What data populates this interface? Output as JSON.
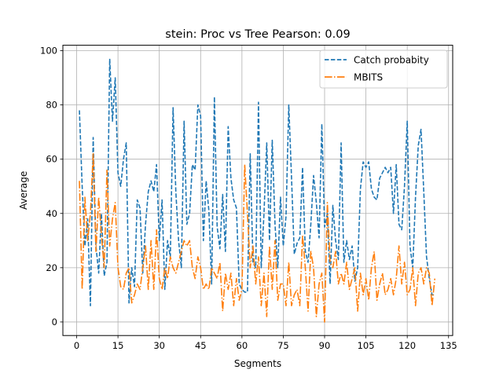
{
  "chart_data": {
    "type": "line",
    "title": "stein: Proc vs Tree Pearson: 0.09",
    "xlabel": "Segments",
    "ylabel": "Average",
    "xlim": [
      -5,
      136.5
    ],
    "ylim": [
      -5,
      102
    ],
    "xticks": [
      0,
      15,
      30,
      45,
      60,
      75,
      90,
      105,
      120,
      135
    ],
    "yticks": [
      0,
      20,
      40,
      60,
      80,
      100
    ],
    "grid": true,
    "legend": "top-right",
    "series": [
      {
        "name": "Catch probabity",
        "color": "#1f77b4",
        "style": "dashed",
        "x": [
          1,
          2,
          3,
          4,
          5,
          6,
          7,
          8,
          9,
          10,
          11,
          12,
          13,
          14,
          15,
          16,
          17,
          18,
          19,
          20,
          21,
          22,
          23,
          24,
          25,
          26,
          27,
          28,
          29,
          30,
          31,
          32,
          33,
          34,
          35,
          36,
          37,
          38,
          39,
          40,
          41,
          42,
          43,
          44,
          45,
          46,
          47,
          48,
          49,
          50,
          51,
          52,
          53,
          54,
          55,
          56,
          57,
          58,
          59,
          60,
          61,
          62,
          63,
          64,
          65,
          66,
          67,
          68,
          69,
          70,
          71,
          72,
          73,
          74,
          75,
          76,
          77,
          78,
          79,
          80,
          81,
          82,
          83,
          84,
          85,
          86,
          87,
          88,
          89,
          90,
          91,
          92,
          93,
          94,
          95,
          96,
          97,
          98,
          99,
          100,
          101,
          102,
          103,
          104,
          105,
          106,
          107,
          108,
          109,
          110,
          111,
          112,
          113,
          114,
          115,
          116,
          117,
          118,
          119,
          120,
          121,
          122,
          123,
          124,
          125,
          126,
          127,
          128,
          129,
          130
        ],
        "values": [
          78,
          50,
          28,
          38,
          6,
          68,
          28,
          18,
          40,
          17,
          22,
          97,
          74,
          90,
          55,
          50,
          60,
          66,
          7,
          20,
          13,
          45,
          42,
          18,
          36,
          48,
          52,
          48,
          58,
          30,
          45,
          12,
          30,
          24,
          79,
          48,
          30,
          20,
          74,
          36,
          40,
          58,
          56,
          80,
          76,
          30,
          52,
          41,
          14,
          83,
          35,
          27,
          47,
          26,
          72,
          53,
          45,
          42,
          14,
          12,
          11,
          11,
          62,
          22,
          20,
          81,
          20,
          40,
          66,
          30,
          67,
          36,
          20,
          46,
          28,
          39,
          80,
          53,
          25,
          29,
          31,
          57,
          26,
          22,
          36,
          54,
          44,
          31,
          73,
          35,
          40,
          14,
          43,
          30,
          23,
          66,
          22,
          30,
          23,
          28,
          15,
          20,
          49,
          59,
          57,
          59,
          49,
          46,
          45,
          53,
          55,
          57,
          55,
          57,
          40,
          58,
          36,
          34,
          50,
          74,
          28,
          20,
          46,
          65,
          71,
          48,
          24,
          16,
          10,
          10
        ]
      },
      {
        "name": "MBITS",
        "color": "#ff7f0e",
        "style": "dashdot",
        "x": [
          1,
          2,
          3,
          4,
          5,
          6,
          7,
          8,
          9,
          10,
          11,
          12,
          13,
          14,
          15,
          16,
          17,
          18,
          19,
          20,
          21,
          22,
          23,
          24,
          25,
          26,
          27,
          28,
          29,
          30,
          31,
          32,
          33,
          34,
          35,
          36,
          37,
          38,
          39,
          40,
          41,
          42,
          43,
          44,
          45,
          46,
          47,
          48,
          49,
          50,
          51,
          52,
          53,
          54,
          55,
          56,
          57,
          58,
          59,
          60,
          61,
          62,
          63,
          64,
          65,
          66,
          67,
          68,
          69,
          70,
          71,
          72,
          73,
          74,
          75,
          76,
          77,
          78,
          79,
          80,
          81,
          82,
          83,
          84,
          85,
          86,
          87,
          88,
          89,
          90,
          91,
          92,
          93,
          94,
          95,
          96,
          97,
          98,
          99,
          100,
          101,
          102,
          103,
          104,
          105,
          106,
          107,
          108,
          109,
          110,
          111,
          112,
          113,
          114,
          115,
          116,
          117,
          118,
          119,
          120,
          121,
          122,
          123,
          124,
          125,
          126,
          127,
          128,
          129,
          130
        ],
        "values": [
          52,
          12,
          46,
          30,
          40,
          62,
          26,
          46,
          32,
          20,
          56,
          28,
          38,
          44,
          20,
          13,
          12,
          18,
          20,
          7,
          10,
          14,
          12,
          20,
          28,
          12,
          30,
          12,
          34,
          16,
          12,
          20,
          16,
          24,
          20,
          18,
          22,
          26,
          30,
          28,
          30,
          20,
          16,
          24,
          20,
          12,
          14,
          12,
          20,
          18,
          16,
          22,
          4,
          18,
          12,
          18,
          6,
          16,
          8,
          12,
          58,
          40,
          20,
          28,
          14,
          24,
          6,
          18,
          2,
          28,
          12,
          30,
          8,
          14,
          14,
          6,
          22,
          6,
          10,
          12,
          6,
          32,
          20,
          4,
          26,
          20,
          2,
          14,
          18,
          0,
          44,
          22,
          20,
          26,
          14,
          18,
          14,
          22,
          12,
          16,
          20,
          4,
          18,
          10,
          16,
          8,
          20,
          26,
          8,
          14,
          18,
          10,
          12,
          16,
          10,
          16,
          28,
          14,
          22,
          10,
          12,
          20,
          6,
          18,
          20,
          14,
          20,
          18,
          6,
          16
        ]
      }
    ]
  }
}
